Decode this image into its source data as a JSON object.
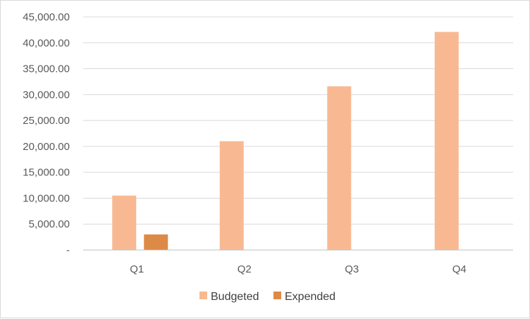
{
  "chart_data": {
    "type": "bar",
    "title": "",
    "xlabel": "",
    "ylabel": "",
    "categories": [
      "Q1",
      "Q2",
      "Q3",
      "Q4"
    ],
    "series": [
      {
        "name": "Budgeted",
        "values": [
          10500,
          21000,
          31600,
          42100
        ],
        "color": "#F8B992"
      },
      {
        "name": "Expended",
        "values": [
          3000,
          0,
          0,
          0
        ],
        "color": "#DE8A47"
      }
    ],
    "ylim": [
      0,
      45000
    ],
    "yticks": [
      0,
      5000,
      10000,
      15000,
      20000,
      25000,
      30000,
      35000,
      40000,
      45000
    ],
    "ytick_labels": [
      "-",
      "5,000.00",
      "10,000.00",
      "15,000.00",
      "20,000.00",
      "25,000.00",
      "30,000.00",
      "35,000.00",
      "40,000.00",
      "45,000.00"
    ],
    "grid": true,
    "legend_position": "bottom",
    "gridline_color": "#d9d9d9",
    "axis_color": "#bfbfbf"
  }
}
